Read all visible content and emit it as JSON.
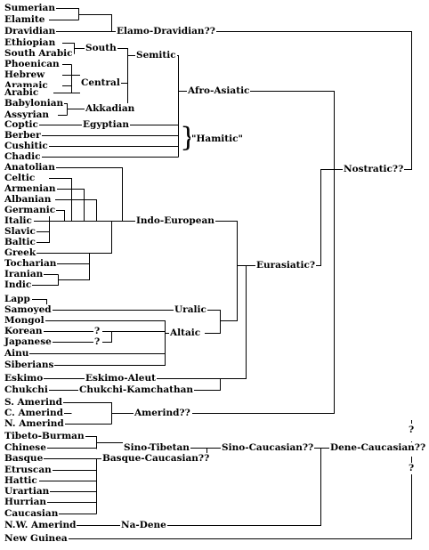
{
  "languages": {
    "sumerian": "Sumerian",
    "elamite": "Elamite",
    "dravidian": "Dravidian",
    "ethiopian": "Ethiopian",
    "south_arabic": "South Arabic",
    "phoenican": "Phoenican",
    "hebrew": "Hebrew",
    "aramaic": "Aramaic",
    "arabic": "Arabic",
    "babylonian": "Babylonian",
    "assyrian": "Assyrian",
    "coptic": "Coptic",
    "berber": "Berber",
    "cushitic": "Cushitic",
    "chadic": "Chadic",
    "anatolian": "Anatolian",
    "celtic": "Celtic",
    "armenian": "Armenian",
    "albanian": "Albanian",
    "germanic": "Germanic",
    "italic": "Italic",
    "slavic": "Slavic",
    "baltic": "Baltic",
    "greek": "Greek",
    "tocharian": "Tocharian",
    "iranian": "Iranian",
    "indic": "Indic",
    "lapp": "Lapp",
    "samoyed": "Samoyed",
    "mongol": "Mongol",
    "korean": "Korean",
    "japanese": "Japanese",
    "ainu": "Ainu",
    "siberians": "Siberians",
    "eskimo": "Eskimo",
    "chukchi": "Chukchi",
    "s_amerind": "S. Amerind",
    "c_amerind": "C. Amerind",
    "n_amerind": "N. Amerind",
    "tibeto_burman": "Tibeto-Burman",
    "chinese": "Chinese",
    "basque": "Basque",
    "etruscan": "Etruscan",
    "hattic": "Hattic",
    "urartian": "Urartian",
    "hurrian": "Hurrian",
    "caucasian": "Caucasian",
    "nw_amerind": "N.W. Amerind",
    "new_guinea": "New Guinea"
  },
  "groups": {
    "elamo_dravidian": "Elamo-Dravidian??",
    "south": "South",
    "central": "Central",
    "akkadian": "Akkadian",
    "semitic": "Semitic",
    "egyptian": "Egyptian",
    "hamitic": "\"Hamitic\"",
    "afro_asiatic": "Afro-Asiatic",
    "indo_european": "Indo-European",
    "uralic": "Uralic",
    "altaic": "Altaic",
    "korean_q": "?",
    "japanese_q": "?",
    "eskimo_aleut": "Eskimo-Aleut",
    "chukchi_kamchathan": "Chukchi-Kamchathan",
    "eurasiatic": "Eurasiatic?",
    "nostratic": "Nostratic??",
    "amerind": "Amerind??",
    "sino_tibetan": "Sino-Tibetan",
    "basque_caucasian": "Basque-Caucasian??",
    "sino_caucasian": "Sino-Caucasian??",
    "na_dene": "Na-Dene",
    "dene_caucasian": "Dene-Caucasian??",
    "q_upper": "?",
    "q_lower": "?"
  }
}
